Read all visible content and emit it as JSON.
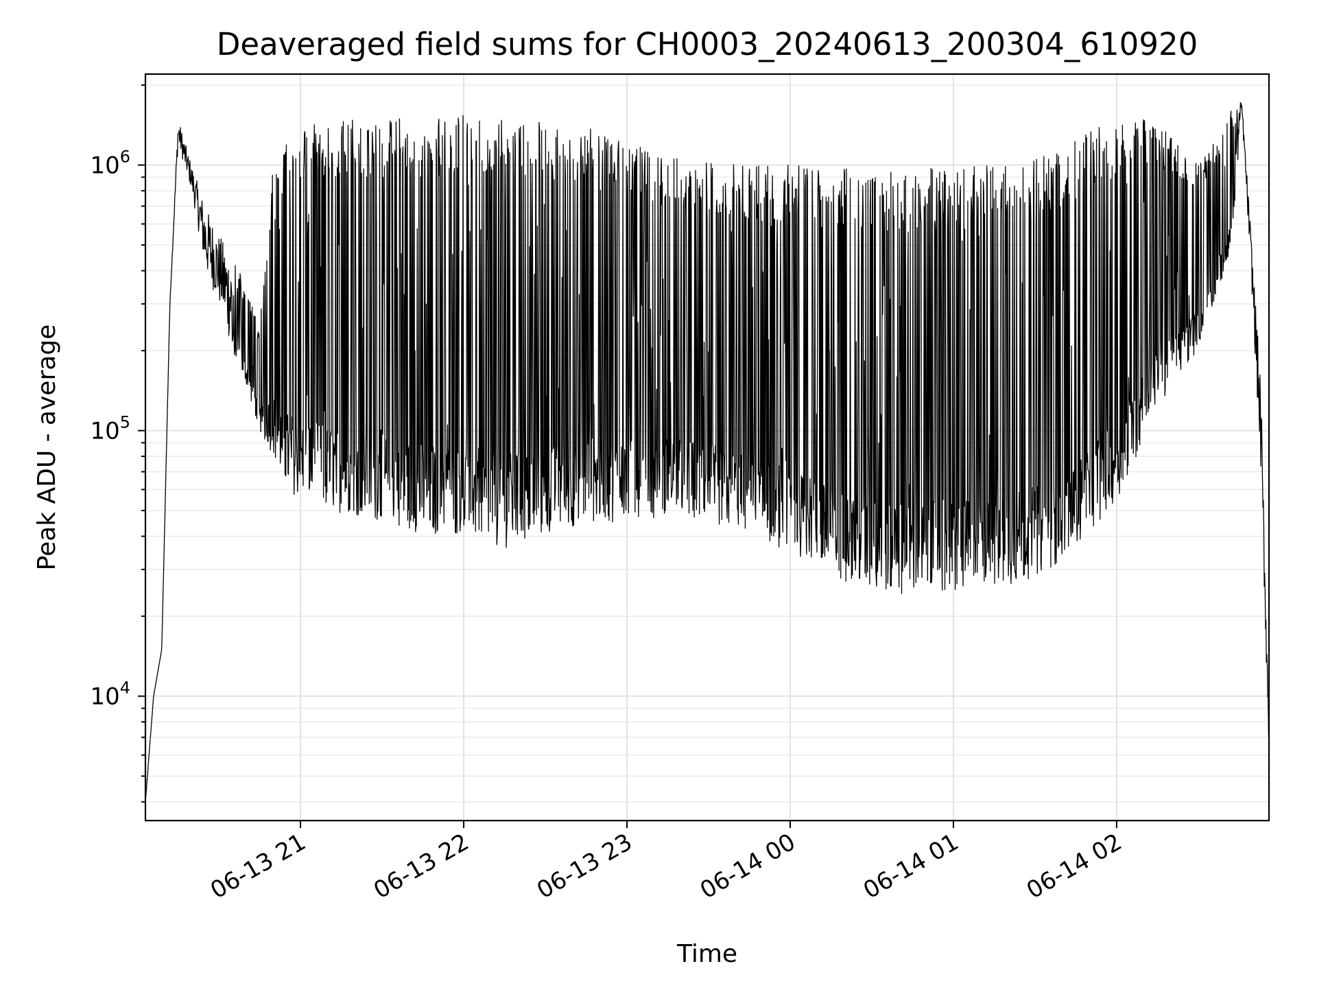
{
  "chart_data": {
    "type": "line",
    "title": "Deaveraged field sums for CH0003_20240613_200304_610920",
    "xlabel": "Time",
    "ylabel": "Peak ADU - average",
    "yscale": "log",
    "ylim": [
      3400,
      2200000
    ],
    "xlim": [
      "2024-06-13 20:03",
      "2024-06-14 02:56"
    ],
    "grid": true,
    "legend": "none",
    "line_color": "#000000",
    "x_ticks": [
      {
        "t": "2024-06-13 21:00",
        "label": "06-13 21"
      },
      {
        "t": "2024-06-13 22:00",
        "label": "06-13 22"
      },
      {
        "t": "2024-06-13 23:00",
        "label": "06-13 23"
      },
      {
        "t": "2024-06-14 00:00",
        "label": "06-14 00"
      },
      {
        "t": "2024-06-14 01:00",
        "label": "06-14 01"
      },
      {
        "t": "2024-06-14 02:00",
        "label": "06-14 02"
      }
    ],
    "y_ticks": [
      {
        "value": 10000,
        "base": "10",
        "exp": "4"
      },
      {
        "value": 100000,
        "base": "10",
        "exp": "5"
      },
      {
        "value": 1000000,
        "base": "10",
        "exp": "6"
      }
    ],
    "series": [
      {
        "x": [
          "2024-06-13 20:03",
          "2024-06-13 20:06",
          "2024-06-13 20:09",
          "2024-06-13 20:12",
          "2024-06-13 20:15",
          "2024-06-13 20:20",
          "2024-06-13 20:25",
          "2024-06-13 20:30",
          "2024-06-13 20:35",
          "2024-06-13 20:40",
          "2024-06-13 20:45",
          "2024-06-13 20:50",
          "2024-06-13 20:55",
          "2024-06-13 21:00",
          "2024-06-13 21:10",
          "2024-06-13 21:20",
          "2024-06-13 21:30",
          "2024-06-13 21:40",
          "2024-06-13 21:50",
          "2024-06-13 22:00",
          "2024-06-13 22:15",
          "2024-06-13 22:30",
          "2024-06-13 22:45",
          "2024-06-13 23:00",
          "2024-06-13 23:15",
          "2024-06-13 23:30",
          "2024-06-13 23:45",
          "2024-06-14 00:00",
          "2024-06-14 00:15",
          "2024-06-14 00:30",
          "2024-06-14 00:45",
          "2024-06-14 01:00",
          "2024-06-14 01:15",
          "2024-06-14 01:30",
          "2024-06-14 01:45",
          "2024-06-14 02:00",
          "2024-06-14 02:10",
          "2024-06-14 02:20",
          "2024-06-14 02:30",
          "2024-06-14 02:38",
          "2024-06-14 02:42",
          "2024-06-14 02:46",
          "2024-06-14 02:50",
          "2024-06-14 02:53",
          "2024-06-14 02:56"
        ],
        "lower": [
          4000,
          10000,
          15000,
          300000,
          1200000,
          800000,
          400000,
          300000,
          200000,
          150000,
          100000,
          80000,
          60000,
          55000,
          50000,
          48000,
          45000,
          42000,
          40000,
          40000,
          36000,
          40000,
          45000,
          45000,
          48000,
          45000,
          40000,
          35000,
          28000,
          25000,
          24000,
          24000,
          25000,
          28000,
          35000,
          55000,
          90000,
          150000,
          200000,
          350000,
          450000,
          1600000,
          300000,
          70000,
          6000
        ],
        "upper": [
          4000,
          10000,
          15000,
          300000,
          1500000,
          1000000,
          700000,
          550000,
          450000,
          350000,
          250000,
          1000000,
          1300000,
          1400000,
          1450000,
          1500000,
          1500000,
          1500000,
          1500000,
          1550000,
          1500000,
          1500000,
          1400000,
          1200000,
          1100000,
          1050000,
          1000000,
          1000000,
          1000000,
          950000,
          950000,
          1000000,
          1000000,
          1050000,
          1250000,
          1500000,
          1500000,
          1300000,
          1000000,
          1300000,
          1600000,
          1750000,
          450000,
          150000,
          8000
        ]
      }
    ]
  }
}
